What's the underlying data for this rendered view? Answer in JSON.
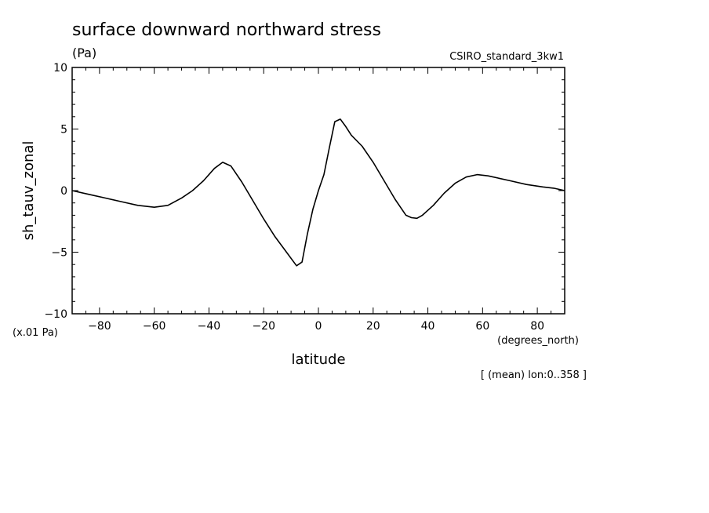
{
  "chart_data": {
    "type": "line",
    "title": "surface downward northward stress",
    "units": "(Pa)",
    "dataset": "CSIRO_standard_3kw1",
    "xlabel": "latitude",
    "x_units": "(degrees_north)",
    "ylabel": "sh_tauv_zonal",
    "y_scale_note": "(x.01 Pa)",
    "footnote": "[ (mean) lon:0..358 ]",
    "xlim": [
      -90,
      90
    ],
    "ylim": [
      -10,
      10
    ],
    "x_ticks": [
      -80,
      -60,
      -40,
      -20,
      0,
      20,
      40,
      60,
      80
    ],
    "x_tick_labels": [
      "−80",
      "−60",
      "−40",
      "−20",
      "0",
      "20",
      "40",
      "60",
      "80"
    ],
    "y_ticks": [
      10,
      5,
      0,
      -5,
      -10
    ],
    "y_tick_labels": [
      "10",
      "5",
      "0",
      "−5",
      "−10"
    ],
    "grid": false,
    "line_color": "#000000",
    "series": [
      {
        "x": [
          -90,
          -84,
          -78,
          -72,
          -66,
          -60,
          -55,
          -50,
          -46,
          -42,
          -38,
          -35,
          -32,
          -28,
          -24,
          -20,
          -16,
          -12,
          -8,
          -6,
          -4,
          -2,
          0,
          2,
          4,
          6,
          8,
          10,
          12,
          16,
          20,
          24,
          28,
          32,
          34,
          36,
          38,
          42,
          46,
          50,
          54,
          58,
          62,
          66,
          70,
          76,
          82,
          86,
          90
        ],
        "y": [
          0.0,
          -0.3,
          -0.6,
          -0.9,
          -1.2,
          -1.35,
          -1.2,
          -0.6,
          0.0,
          0.8,
          1.8,
          2.3,
          2.0,
          0.7,
          -0.8,
          -2.3,
          -3.7,
          -4.9,
          -6.1,
          -5.8,
          -3.5,
          -1.5,
          0.0,
          1.3,
          3.5,
          5.6,
          5.8,
          5.2,
          4.5,
          3.6,
          2.3,
          0.8,
          -0.7,
          -2.0,
          -2.2,
          -2.25,
          -2.0,
          -1.2,
          -0.2,
          0.6,
          1.1,
          1.3,
          1.2,
          1.0,
          0.8,
          0.5,
          0.3,
          0.2,
          0.0
        ]
      }
    ]
  }
}
